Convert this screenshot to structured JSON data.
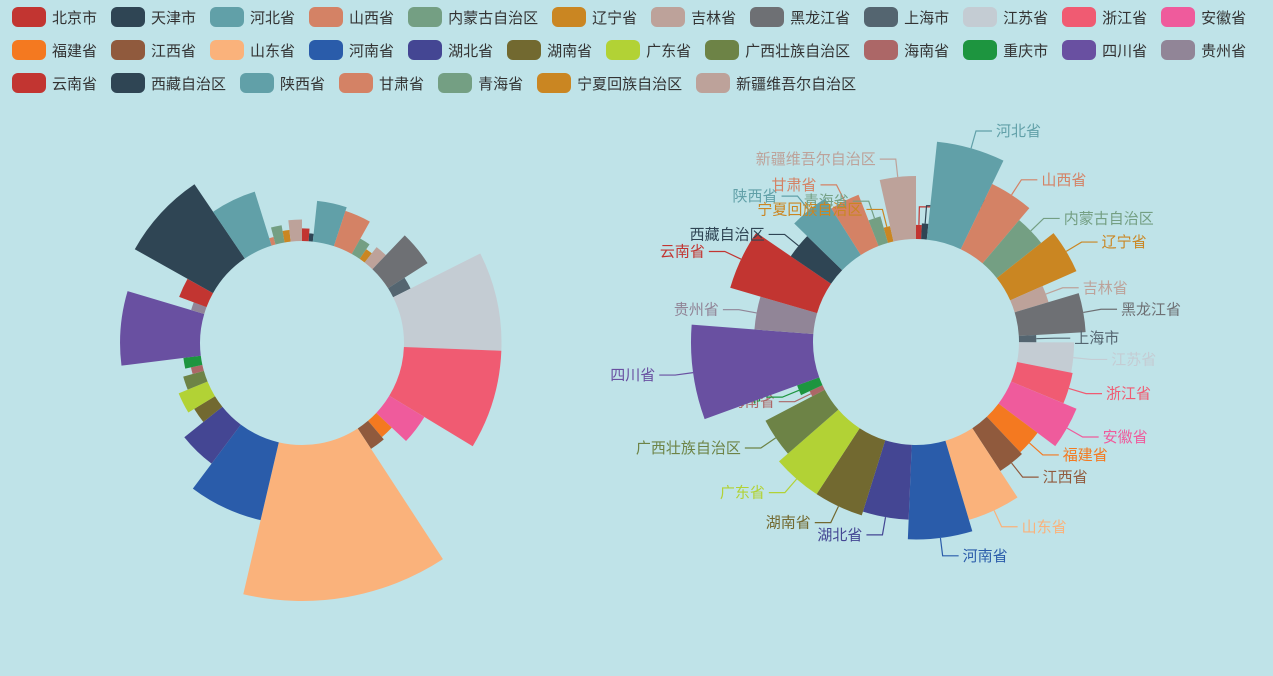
{
  "chart_data": [
    {
      "type": "rose-pie",
      "label_mode": "none",
      "series": [
        {
          "name": "北京市",
          "value": 13
        },
        {
          "name": "天津市",
          "value": 8
        },
        {
          "name": "河北省",
          "value": 42
        },
        {
          "name": "山西省",
          "value": 38
        },
        {
          "name": "内蒙古自治区",
          "value": 18
        },
        {
          "name": "辽宁省",
          "value": 12
        },
        {
          "name": "吉林省",
          "value": 20
        },
        {
          "name": "黑龙江省",
          "value": 48
        },
        {
          "name": "上海市",
          "value": 20
        },
        {
          "name": "江苏省",
          "value": 100
        },
        {
          "name": "浙江省",
          "value": 100
        },
        {
          "name": "安徽省",
          "value": 42
        },
        {
          "name": "福建省",
          "value": 22
        },
        {
          "name": "江西省",
          "value": 25
        },
        {
          "name": "山东省",
          "value": 160
        },
        {
          "name": "河南省",
          "value": 82
        },
        {
          "name": "湖北省",
          "value": 50
        },
        {
          "name": "湖南省",
          "value": 25
        },
        {
          "name": "广东省",
          "value": 32
        },
        {
          "name": "广西壮族自治区",
          "value": 22
        },
        {
          "name": "海南省",
          "value": 12
        },
        {
          "name": "重庆市",
          "value": 18
        },
        {
          "name": "四川省",
          "value": 82
        },
        {
          "name": "贵州省",
          "value": 14
        },
        {
          "name": "云南省",
          "value": 30
        },
        {
          "name": "西藏自治区",
          "value": 92
        },
        {
          "name": "陕西省",
          "value": 58
        },
        {
          "name": "甘肃省",
          "value": 8
        },
        {
          "name": "青海省",
          "value": 18
        },
        {
          "name": "宁夏回族自治区",
          "value": 12
        },
        {
          "name": "新疆维吾尔自治区",
          "value": 22
        }
      ]
    },
    {
      "type": "rose-pie",
      "label_mode": "outside",
      "series": [
        {
          "name": "北京市",
          "value": 18
        },
        {
          "name": "天津市",
          "value": 20
        },
        {
          "name": "河北省",
          "value": 125
        },
        {
          "name": "山西省",
          "value": 92
        },
        {
          "name": "内蒙古自治区",
          "value": 72
        },
        {
          "name": "辽宁省",
          "value": 92
        },
        {
          "name": "吉林省",
          "value": 45
        },
        {
          "name": "黑龙江省",
          "value": 85
        },
        {
          "name": "上海市",
          "value": 22
        },
        {
          "name": "江苏省",
          "value": 70
        },
        {
          "name": "浙江省",
          "value": 72
        },
        {
          "name": "安徽省",
          "value": 90
        },
        {
          "name": "福建省",
          "value": 62
        },
        {
          "name": "江西省",
          "value": 65
        },
        {
          "name": "山东省",
          "value": 105
        },
        {
          "name": "河南省",
          "value": 120
        },
        {
          "name": "湖北省",
          "value": 95
        },
        {
          "name": "湖南省",
          "value": 100
        },
        {
          "name": "广东省",
          "value": 100
        },
        {
          "name": "广西壮族自治区",
          "value": 85
        },
        {
          "name": "海南省",
          "value": 18
        },
        {
          "name": "重庆市",
          "value": 30
        },
        {
          "name": "四川省",
          "value": 155
        },
        {
          "name": "贵州省",
          "value": 75
        },
        {
          "name": "云南省",
          "value": 115
        },
        {
          "name": "西藏自治区",
          "value": 62
        },
        {
          "name": "陕西省",
          "value": 85
        },
        {
          "name": "甘肃省",
          "value": 70
        },
        {
          "name": "青海省",
          "value": 35
        },
        {
          "name": "宁夏回族自治区",
          "value": 20
        },
        {
          "name": "新疆维吾尔自治区",
          "value": 80
        }
      ]
    }
  ],
  "colors": [
    "#c23531",
    "#2f4554",
    "#61a0a8",
    "#d48265",
    "#749f83",
    "#ca8622",
    "#bda29a",
    "#6e7074",
    "#546570",
    "#c4ccd3",
    "#f05b72",
    "#ef5b9c",
    "#f47920",
    "#905a3d",
    "#fab27b",
    "#2a5caa",
    "#444693",
    "#726930",
    "#b2d235",
    "#6d8346",
    "#ac6767",
    "#1d953f",
    "#6950a1",
    "#918597",
    "#c23531",
    "#2f4554",
    "#61a0a8",
    "#d48265",
    "#749f83",
    "#ca8622",
    "#bda29a"
  ]
}
